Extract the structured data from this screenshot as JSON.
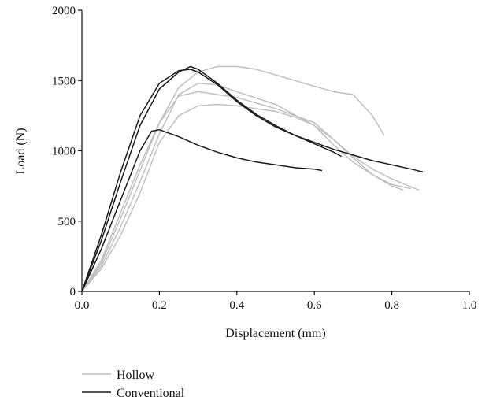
{
  "chart_data": {
    "type": "line",
    "title": "",
    "xlabel": "Displacement (mm)",
    "ylabel": "Load (N)",
    "xlim": [
      0,
      1.0
    ],
    "ylim": [
      0,
      2000
    ],
    "xticks": [
      "0.0",
      "0.2",
      "0.4",
      "0.6",
      "0.8",
      "1.0"
    ],
    "yticks": [
      "0",
      "500",
      "1000",
      "1500",
      "2000"
    ],
    "grid": false,
    "legend_position": "bottom-left",
    "legend": [
      {
        "label": "Hollow",
        "color": "#bdbdbd"
      },
      {
        "label": "Conventional",
        "color": "#1a1a1a"
      }
    ],
    "series": [
      {
        "group": "Hollow",
        "color": "#bdbdbd",
        "x": [
          0.0,
          0.05,
          0.1,
          0.15,
          0.2,
          0.25,
          0.3,
          0.35,
          0.4,
          0.45,
          0.5,
          0.55,
          0.6,
          0.65,
          0.7,
          0.75,
          0.78
        ],
        "y": [
          0,
          220,
          560,
          900,
          1200,
          1450,
          1560,
          1600,
          1600,
          1580,
          1540,
          1500,
          1460,
          1420,
          1400,
          1250,
          1110
        ]
      },
      {
        "group": "Hollow",
        "color": "#bdbdbd",
        "x": [
          0.0,
          0.05,
          0.1,
          0.15,
          0.2,
          0.25,
          0.3,
          0.35,
          0.4,
          0.5,
          0.6,
          0.65,
          0.7,
          0.75,
          0.8,
          0.85
        ],
        "y": [
          0,
          180,
          460,
          780,
          1120,
          1400,
          1480,
          1470,
          1420,
          1330,
          1180,
          1040,
          920,
          830,
          760,
          730
        ]
      },
      {
        "group": "Hollow",
        "color": "#bdbdbd",
        "x": [
          0.0,
          0.05,
          0.1,
          0.15,
          0.2,
          0.25,
          0.3,
          0.35,
          0.4,
          0.5,
          0.6,
          0.65,
          0.7,
          0.75,
          0.8,
          0.83
        ],
        "y": [
          0,
          200,
          520,
          860,
          1200,
          1390,
          1420,
          1400,
          1380,
          1300,
          1200,
          1080,
          950,
          830,
          750,
          720
        ]
      },
      {
        "group": "Hollow",
        "color": "#bdbdbd",
        "x": [
          0.0,
          0.05,
          0.1,
          0.15,
          0.2,
          0.25,
          0.3,
          0.35,
          0.4,
          0.5,
          0.55,
          0.6,
          0.65,
          0.7,
          0.75,
          0.8,
          0.87
        ],
        "y": [
          0,
          160,
          400,
          700,
          1060,
          1250,
          1320,
          1330,
          1320,
          1280,
          1240,
          1180,
          1080,
          960,
          870,
          800,
          720
        ]
      },
      {
        "group": "Conventional",
        "color": "#1a1a1a",
        "x": [
          0.0,
          0.05,
          0.1,
          0.15,
          0.2,
          0.25,
          0.28,
          0.3,
          0.35,
          0.4,
          0.45,
          0.5,
          0.55,
          0.6,
          0.65,
          0.67
        ],
        "y": [
          0,
          360,
          780,
          1180,
          1440,
          1560,
          1600,
          1580,
          1480,
          1360,
          1260,
          1180,
          1110,
          1050,
          990,
          960
        ]
      },
      {
        "group": "Conventional",
        "color": "#1a1a1a",
        "x": [
          0.0,
          0.05,
          0.1,
          0.15,
          0.2,
          0.25,
          0.28,
          0.3,
          0.35,
          0.4,
          0.45,
          0.5,
          0.55,
          0.6,
          0.65,
          0.7,
          0.75,
          0.8,
          0.85,
          0.88
        ],
        "y": [
          0,
          400,
          850,
          1250,
          1480,
          1570,
          1580,
          1560,
          1470,
          1350,
          1250,
          1170,
          1110,
          1060,
          1010,
          970,
          930,
          900,
          870,
          850
        ]
      },
      {
        "group": "Conventional",
        "color": "#1a1a1a",
        "x": [
          0.0,
          0.05,
          0.1,
          0.15,
          0.18,
          0.2,
          0.25,
          0.3,
          0.35,
          0.4,
          0.45,
          0.5,
          0.55,
          0.6,
          0.62
        ],
        "y": [
          0,
          300,
          650,
          1000,
          1140,
          1150,
          1100,
          1040,
          990,
          950,
          920,
          900,
          880,
          870,
          860
        ]
      }
    ]
  }
}
